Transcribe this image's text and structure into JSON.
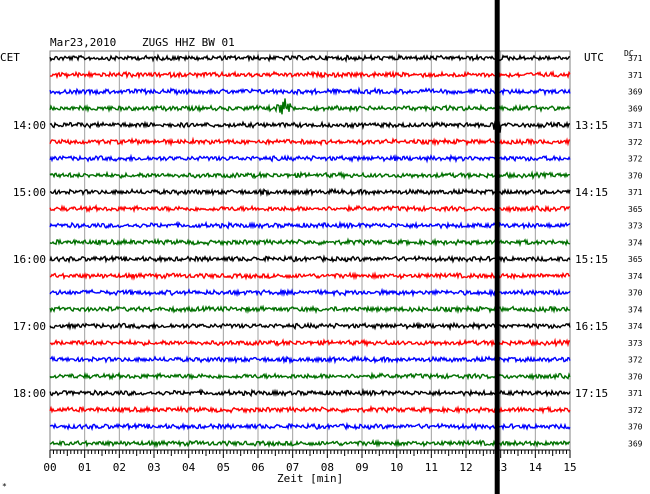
{
  "header": {
    "date": "Mar23,2010",
    "station": "ZUGS HHZ BW 01"
  },
  "left_unit": "CET",
  "right_unit": "UTC",
  "dc_label": "DC",
  "footer_mark": "*",
  "chart_data": {
    "type": "line",
    "title": "Mar23,2010  ZUGS HHZ BW 01",
    "xlabel": "Zeit [min]",
    "xlim": [
      0,
      15
    ],
    "x_ticks": [
      "00",
      "01",
      "02",
      "03",
      "04",
      "05",
      "06",
      "07",
      "08",
      "09",
      "10",
      "11",
      "12",
      "13",
      "14",
      "15"
    ],
    "left_time_labels": [
      {
        "text": "14:00",
        "row": 4
      },
      {
        "text": "15:00",
        "row": 8
      },
      {
        "text": "16:00",
        "row": 12
      },
      {
        "text": "17:00",
        "row": 16
      },
      {
        "text": "18:00",
        "row": 20
      }
    ],
    "right_time_labels": [
      {
        "text": "13:15",
        "row": 4
      },
      {
        "text": "14:15",
        "row": 8
      },
      {
        "text": "15:15",
        "row": 12
      },
      {
        "text": "16:15",
        "row": 16
      },
      {
        "text": "17:15",
        "row": 20
      }
    ],
    "dc_values": [
      "371",
      "371",
      "369",
      "369",
      "371",
      "372",
      "372",
      "370",
      "371",
      "365",
      "373",
      "374",
      "365",
      "374",
      "370",
      "374",
      "374",
      "373",
      "372",
      "370",
      "371",
      "372",
      "370",
      "369"
    ],
    "row_colors": [
      "#000000",
      "#ff0000",
      "#0000ff",
      "#007000"
    ],
    "events": [
      {
        "row": 3,
        "minute": 6.75,
        "type": "small burst"
      },
      {
        "row": 4,
        "minute": 12.9,
        "type": "spike"
      }
    ],
    "vertical_marker_minute": 12.9,
    "grid": true
  }
}
